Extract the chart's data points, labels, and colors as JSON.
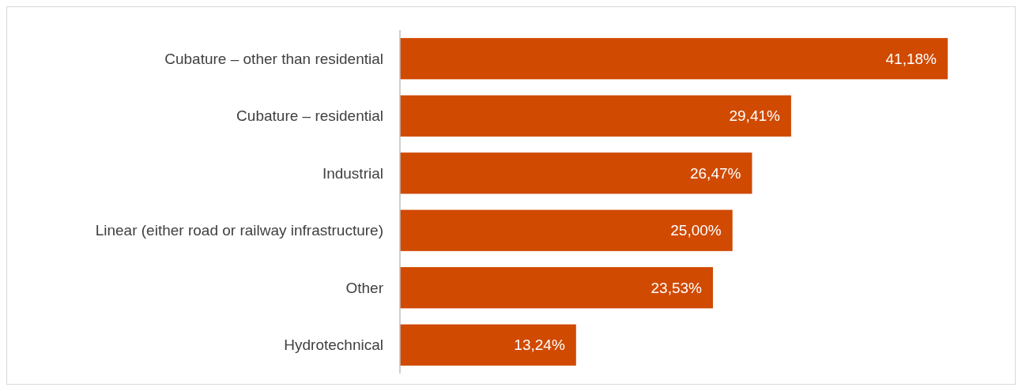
{
  "chart_data": {
    "type": "bar",
    "orientation": "horizontal",
    "categories": [
      "Cubature – other than residential",
      "Cubature – residential",
      "Industrial",
      "Linear (either road or railway infrastructure)",
      "Other",
      "Hydrotechnical"
    ],
    "values": [
      41.18,
      29.41,
      26.47,
      25.0,
      23.53,
      13.24
    ],
    "value_labels": [
      "41,18%",
      "29,41%",
      "26,47%",
      "25,00%",
      "23,53%",
      "13,24%"
    ],
    "color": "#d04a02"
  }
}
